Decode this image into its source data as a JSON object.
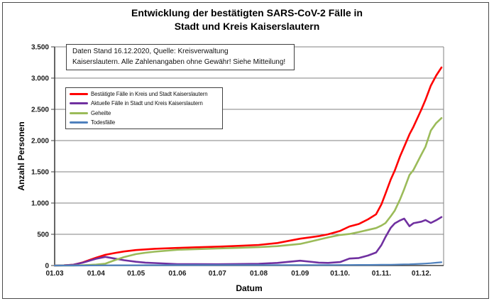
{
  "title": {
    "line1": "Entwicklung der bestätigten SARS-CoV-2 Fälle in",
    "line2": "Stadt und Kreis Kaiserslautern"
  },
  "annotation": {
    "line1": "Daten Stand 16.12.2020, Quelle: Kreisverwaltung",
    "line2": "Kaiserslautern. Alle Zahlenangaben ohne Gewähr! Siehe Mitteilung!"
  },
  "colors": {
    "grid": "#808080",
    "axis": "#404040",
    "frame": "#4a4a4a",
    "background": "#ffffff"
  },
  "chart_data": {
    "type": "line",
    "title": "Entwicklung der bestätigten SARS-CoV-2 Fälle in Stadt und Kreis Kaiserslautern",
    "xlabel": "Datum",
    "ylabel": "Anzahl Personen",
    "ylim": [
      0,
      3500
    ],
    "ytick_interval": 500,
    "ytick_labels": [
      "0",
      "500",
      "1.000",
      "1.500",
      "2.000",
      "2.500",
      "3.000",
      "3.500"
    ],
    "xtick_labels": [
      "01.03",
      "01.04",
      "01.05",
      "01.06",
      "01.07",
      "01.08",
      "01.09",
      "01.10.",
      "01.11.",
      "01.12."
    ],
    "xtick_days": [
      0,
      31,
      61,
      92,
      122,
      153,
      184,
      214,
      245,
      275
    ],
    "x_range_days": [
      0,
      290
    ],
    "grid": "horizontal-only",
    "legend_position": "inside-top-left",
    "x_dates": [
      "01.03",
      "08.03",
      "15.03",
      "22.03",
      "01.04",
      "08.04",
      "15.04",
      "22.04",
      "01.05",
      "08.05",
      "15.05",
      "01.06",
      "15.06",
      "01.07",
      "15.07",
      "01.08",
      "15.08",
      "01.09",
      "08.09",
      "15.09",
      "22.09",
      "01.10",
      "08.10",
      "15.10",
      "22.10",
      "28.10",
      "01.11",
      "04.11",
      "08.11",
      "11.11",
      "15.11",
      "18.11",
      "22.11",
      "25.11",
      "01.12",
      "04.12",
      "08.12",
      "12.12",
      "16.12"
    ],
    "x_days": [
      0,
      7,
      14,
      21,
      31,
      38,
      45,
      52,
      61,
      68,
      75,
      92,
      106,
      122,
      136,
      153,
      167,
      184,
      191,
      198,
      205,
      214,
      221,
      228,
      235,
      241,
      245,
      248,
      252,
      255,
      259,
      262,
      266,
      269,
      275,
      278,
      282,
      286,
      290
    ],
    "series": [
      {
        "name": "Bestätigte Fälle in Kreis und Stadt Kaiserslautern",
        "color": "#FF0000",
        "values": [
          0,
          3,
          12,
          50,
          125,
          172,
          200,
          225,
          248,
          258,
          268,
          282,
          292,
          302,
          314,
          330,
          360,
          430,
          450,
          470,
          500,
          555,
          625,
          665,
          740,
          820,
          980,
          1150,
          1380,
          1520,
          1750,
          1900,
          2100,
          2220,
          2500,
          2650,
          2880,
          3040,
          3170
        ]
      },
      {
        "name": "Aktuelle Fälle in Stadt und Kreis Kaiserslautern",
        "color": "#7030A0",
        "values": [
          0,
          3,
          12,
          45,
          108,
          139,
          111,
          85,
          60,
          47,
          40,
          23,
          22,
          21,
          24,
          28,
          42,
          77,
          62,
          47,
          42,
          56,
          111,
          120,
          160,
          209,
          328,
          457,
          606,
          675,
          723,
          751,
          629,
          677,
          702,
          728,
          682,
          725,
          775
        ]
      },
      {
        "name": "Geheilte",
        "color": "#9BBB59",
        "values": [
          0,
          0,
          0,
          5,
          15,
          30,
          85,
          135,
          183,
          205,
          222,
          252,
          263,
          273,
          282,
          294,
          310,
          345,
          380,
          415,
          450,
          490,
          505,
          535,
          570,
          600,
          640,
          680,
          790,
          880,
          1060,
          1220,
          1450,
          1530,
          1780,
          1900,
          2160,
          2280,
          2360
        ]
      },
      {
        "name": "Todesfälle",
        "color": "#4F81BD",
        "values": [
          0,
          0,
          0,
          0,
          2,
          3,
          4,
          5,
          5,
          6,
          6,
          7,
          7,
          8,
          8,
          8,
          8,
          8,
          8,
          8,
          8,
          9,
          9,
          10,
          10,
          11,
          12,
          13,
          14,
          15,
          17,
          19,
          21,
          23,
          28,
          32,
          38,
          45,
          52
        ]
      }
    ]
  }
}
